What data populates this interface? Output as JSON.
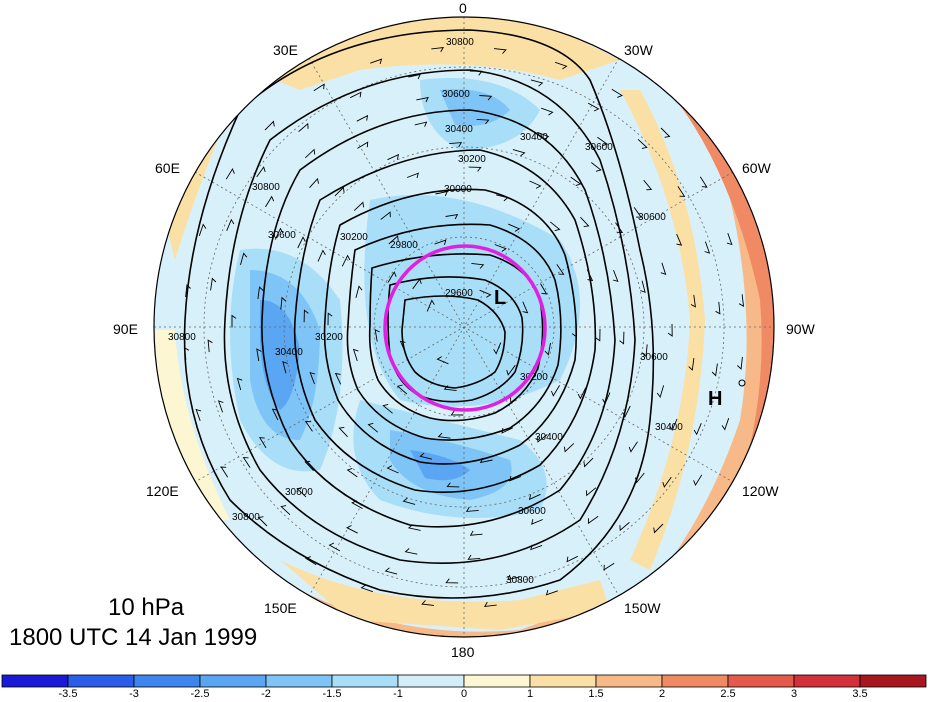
{
  "caption": {
    "level": "10 hPa",
    "time": "1800 UTC 14 Jan 1999"
  },
  "longitude_labels": {
    "top": "0",
    "bottom": "180",
    "left": "90E",
    "right": "90W",
    "e30": "30E",
    "w30": "30W",
    "e60": "60E",
    "w60": "60W",
    "e120": "120E",
    "w120": "120W",
    "e150": "150E",
    "w150": "150W"
  },
  "map_markers": {
    "low": "L",
    "high": "H"
  },
  "contour_labels": [
    "30800",
    "30600",
    "30400",
    "30200",
    "30000",
    "29800",
    "29600",
    "30600",
    "30400",
    "30200",
    "30800",
    "30600",
    "30400",
    "30200",
    "30600",
    "30800",
    "30400",
    "30600",
    "30800",
    "30600",
    "30800",
    "30200",
    "30600",
    "30400"
  ],
  "colorbar": {
    "ticks": [
      "-3.5",
      "-3",
      "-2.5",
      "-2",
      "-1.5",
      "-1",
      "0",
      "1",
      "1.5",
      "2",
      "2.5",
      "3",
      "3.5"
    ],
    "colors": [
      "#1a1ad6",
      "#2a5ee8",
      "#3d86ee",
      "#5aa6f2",
      "#7fc4f6",
      "#a9def8",
      "#d3eefa",
      "#fdf6d2",
      "#fbe0a5",
      "#f8b988",
      "#f08a64",
      "#e65a4c",
      "#d2303a",
      "#a8161f"
    ]
  },
  "colors": {
    "contour": "#000000",
    "ring": "#e020e0"
  }
}
